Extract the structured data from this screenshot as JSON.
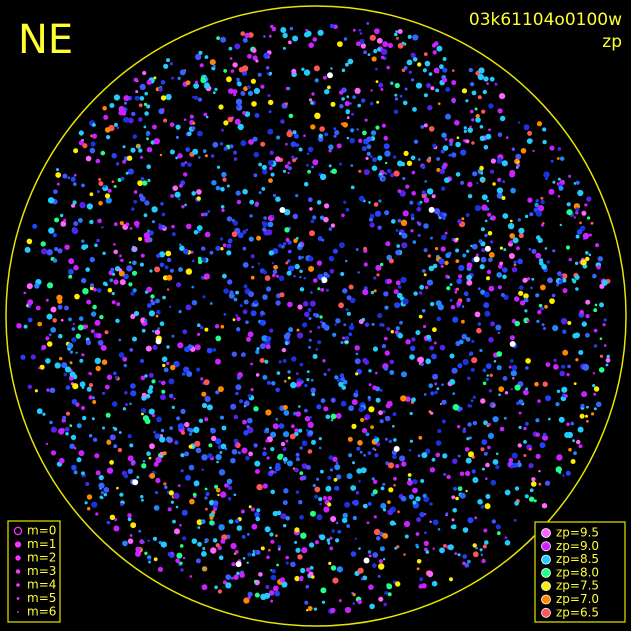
{
  "header": {
    "corner": "NE",
    "image_id": "03k61104o0100w",
    "quantity": "zp"
  },
  "magnitude_legend": [
    {
      "label": "m=0"
    },
    {
      "label": "m=1"
    },
    {
      "label": "m=2"
    },
    {
      "label": "m=3"
    },
    {
      "label": "m=4"
    },
    {
      "label": "m=5"
    },
    {
      "label": "m=6"
    }
  ],
  "zp_legend": [
    {
      "label": "zp=9.5",
      "color": "#ff66ff"
    },
    {
      "label": "zp=9.0",
      "color": "#cc22ff"
    },
    {
      "label": "zp=8.5",
      "color": "#22ccff"
    },
    {
      "label": "zp=8.0",
      "color": "#22ff88"
    },
    {
      "label": "zp=7.5",
      "color": "#ffee00"
    },
    {
      "label": "zp=7.0",
      "color": "#ff8800"
    },
    {
      "label": "zp=6.5",
      "color": "#ff5555"
    }
  ]
}
